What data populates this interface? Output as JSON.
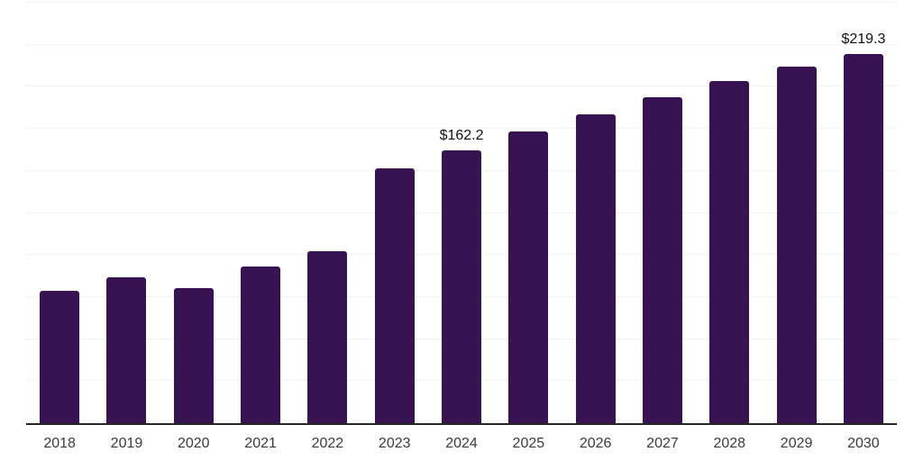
{
  "chart": {
    "background_color": "#ffffff",
    "bar_color": "#371451",
    "axis_color": "#262626",
    "gridline_color": "#f0f0f0",
    "tick_label_color": "#3b3b3b",
    "value_label_color": "#111111"
  },
  "chart_data": {
    "type": "bar",
    "title": "",
    "xlabel": "",
    "ylabel": "",
    "categories": [
      "2018",
      "2019",
      "2020",
      "2021",
      "2022",
      "2023",
      "2024",
      "2025",
      "2026",
      "2027",
      "2028",
      "2029",
      "2030"
    ],
    "values": [
      78.8,
      87.0,
      80.2,
      93.2,
      102.5,
      151.4,
      162.2,
      173.6,
      183.8,
      194.0,
      203.5,
      212.0,
      219.3
    ],
    "data_labels": [
      "",
      "",
      "",
      "",
      "",
      "",
      "$162.2",
      "",
      "",
      "",
      "",
      "",
      "$219.3"
    ],
    "ylim": [
      0,
      250
    ],
    "grid_step": 25,
    "grid": "horizontal-only",
    "y_axis_labels_visible": false,
    "legend": "none"
  }
}
